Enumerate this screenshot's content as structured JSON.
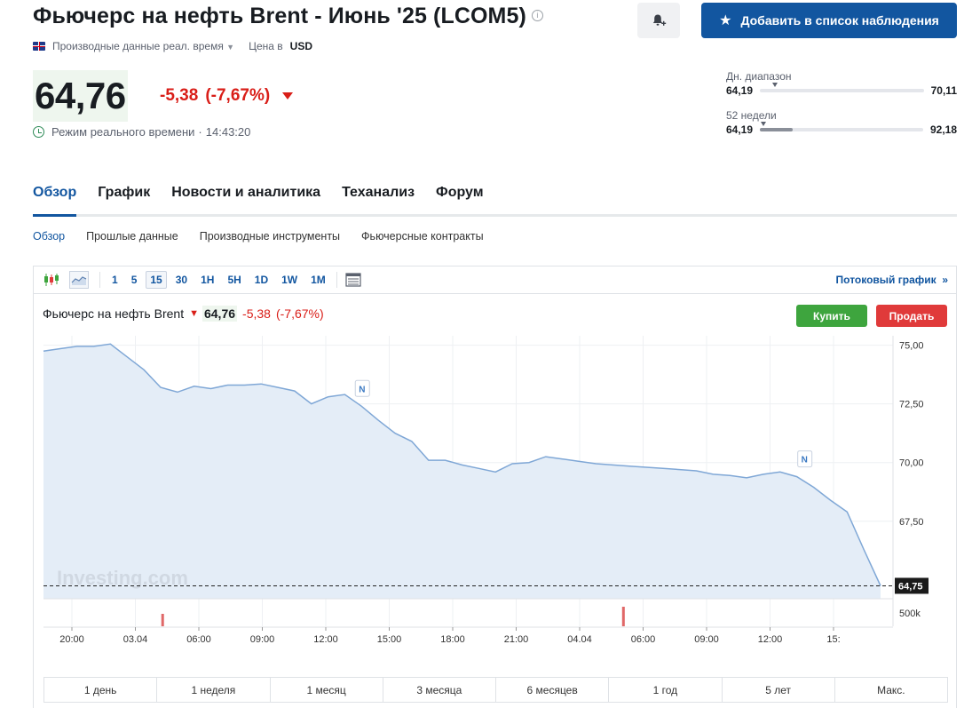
{
  "header": {
    "title": "Фьючерс на нефть Brent - Июнь '25 (LCOM5)",
    "info_icon": "info-icon",
    "alert_icon": "bell-plus-icon",
    "watchlist_button": "Добавить в список наблюдения",
    "meta": {
      "source": "Производные данные реал. время",
      "currency_label": "Цена в",
      "currency": "USD"
    }
  },
  "quote": {
    "price": "64,76",
    "change": "-5,38",
    "change_pct": "(-7,67%)",
    "realtime_label": "Режим реального времени",
    "separator": "·",
    "time": "14:43:20"
  },
  "ranges": {
    "day": {
      "label": "Дн. диапазон",
      "low": "64,19",
      "high": "70,11",
      "position": 0.09
    },
    "week52": {
      "label": "52 недели",
      "low": "64,19",
      "high": "92,18",
      "position": 0.02,
      "fill": 0.2
    }
  },
  "tabs": [
    "Обзор",
    "График",
    "Новости и аналитика",
    "Теханализ",
    "Форум"
  ],
  "subtabs": [
    "Обзор",
    "Прошлые данные",
    "Производные инструменты",
    "Фьючерсные контракты"
  ],
  "toolbar": {
    "timeframes": [
      "1",
      "5",
      "15",
      "30",
      "1H",
      "5H",
      "1D",
      "1W",
      "1M"
    ],
    "active_timeframe": "15",
    "stream_link": "Потоковый график",
    "stream_arrow": "»"
  },
  "chart_header": {
    "name": "Фьючерс на нефть Brent",
    "arrow": "🡇",
    "price": "64,76",
    "change": "-5,38",
    "change_pct": "(-7,67%)",
    "buy": "Купить",
    "sell": "Продать"
  },
  "periods": [
    "1 день",
    "1 неделя",
    "1 месяц",
    "3 месяца",
    "6 месяцев",
    "1 год",
    "5 лет",
    "Макс."
  ],
  "chart_data": {
    "type": "area",
    "y_ticks": [
      "75,00",
      "72,50",
      "70,00",
      "67,50"
    ],
    "ylim": [
      64.2,
      75.4
    ],
    "x_ticks": [
      "20:00",
      "03.04",
      "06:00",
      "09:00",
      "12:00",
      "15:00",
      "18:00",
      "21:00",
      "04.04",
      "06:00",
      "09:00",
      "12:00",
      "15:"
    ],
    "last_price_label": "64,75",
    "volume_label": "500k",
    "watermark": "Investing.com",
    "news_marker": "N",
    "colors": {
      "line": "#7fa7d6",
      "fill": "#e4edf7",
      "volume": "#e06868"
    },
    "x": [
      0,
      2.1,
      4.2,
      6.3,
      8.4,
      10.5,
      12.6,
      14.7,
      16.8,
      18.9,
      21,
      23.1,
      25.2,
      27.3,
      29.4,
      31.5,
      33.6,
      35.7,
      37.8,
      39.9,
      42,
      44.1,
      46.2,
      48.3,
      50.4,
      52.5,
      54.6,
      56.7,
      58.8,
      60.9,
      63,
      65.1,
      67.2,
      69.3,
      71.4,
      73.5,
      75.6,
      77.7,
      79.8,
      81.9,
      84,
      86.1,
      88.2,
      90.3,
      92.4,
      94.5,
      96.6,
      98.7,
      100.8,
      102.9,
      105
    ],
    "values": [
      74.75,
      74.85,
      74.95,
      74.95,
      75.05,
      74.5,
      73.95,
      73.2,
      73.0,
      73.25,
      73.15,
      73.3,
      73.3,
      73.35,
      73.2,
      73.05,
      72.5,
      72.8,
      72.9,
      72.4,
      71.8,
      71.25,
      70.9,
      70.1,
      70.1,
      69.9,
      69.75,
      69.6,
      69.95,
      70.0,
      70.25,
      70.15,
      70.05,
      69.95,
      69.9,
      69.85,
      69.8,
      69.75,
      69.7,
      69.65,
      69.5,
      69.45,
      69.35,
      69.5,
      69.6,
      69.4,
      68.95,
      68.4,
      67.9,
      66.3,
      64.75
    ],
    "news_x": [
      40,
      95.5
    ],
    "volume_x": [
      15,
      72.8
    ]
  }
}
